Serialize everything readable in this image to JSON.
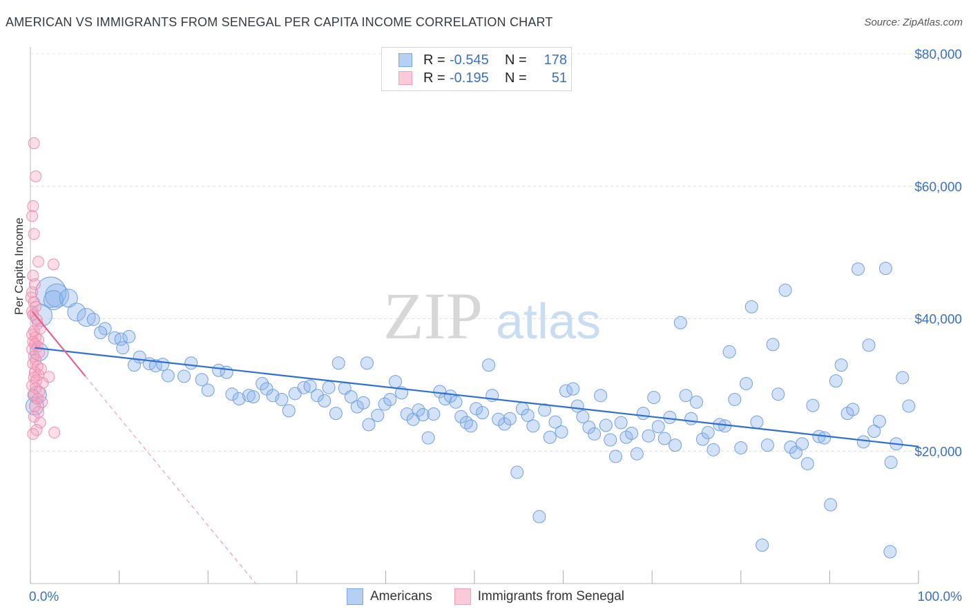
{
  "title": "AMERICAN VS IMMIGRANTS FROM SENEGAL PER CAPITA INCOME CORRELATION CHART",
  "source": "Source: ZipAtlas.com",
  "watermark": {
    "zip": "ZIP",
    "atlas": "atlas"
  },
  "legend": {
    "rows": [
      {
        "r_label": "R =",
        "r_value": "-0.545",
        "n_label": "N =",
        "n_value": "178",
        "color": "#7aaae8"
      },
      {
        "r_label": "R =",
        "r_value": "-0.195",
        "n_label": "N =",
        "n_value": "51",
        "color": "#f4a0b8"
      }
    ]
  },
  "bottom_legend": [
    "Americans",
    "Immigrants from Senegal"
  ],
  "colors": {
    "americans": "#5b8fd8",
    "senegal": "#ec7aa0",
    "trend_blue": "#2f6fd0",
    "trend_pink": "#e8608a",
    "axis_text": "#3a70c8"
  },
  "chart_data": {
    "type": "scatter",
    "title": "AMERICAN VS IMMIGRANTS FROM SENEGAL PER CAPITA INCOME CORRELATION CHART",
    "xlabel": "",
    "ylabel": "Per Capita Income",
    "xlim": [
      0,
      100
    ],
    "ylim": [
      0,
      80000
    ],
    "x_tick_labels": [
      "0.0%",
      "100.0%"
    ],
    "y_ticks": [
      20000,
      40000,
      60000,
      80000
    ],
    "y_tick_labels": [
      "$20,000",
      "$40,000",
      "$60,000",
      "$80,000"
    ],
    "grid": true,
    "legend_position": "top-center",
    "series": [
      {
        "name": "Americans",
        "color": "#7aaae8",
        "trend": {
          "x": [
            0.5,
            100
          ],
          "y": [
            35600,
            20700
          ]
        },
        "points": [
          [
            2.3,
            44000
          ],
          [
            3,
            43500
          ],
          [
            2.6,
            42800
          ],
          [
            1.2,
            40500
          ],
          [
            1,
            35000
          ],
          [
            0.8,
            28500
          ],
          [
            0.5,
            26800
          ],
          [
            4.3,
            43100
          ],
          [
            5.2,
            41000
          ],
          [
            6.3,
            40200
          ],
          [
            7.1,
            39900
          ],
          [
            8.4,
            38500
          ],
          [
            7.9,
            37900
          ],
          [
            9.5,
            37100
          ],
          [
            10.2,
            36900
          ],
          [
            11.1,
            37300
          ],
          [
            10.4,
            35600
          ],
          [
            12.3,
            34200
          ],
          [
            11.7,
            33000
          ],
          [
            13.4,
            33200
          ],
          [
            14.1,
            32900
          ],
          [
            14.9,
            33100
          ],
          [
            15.5,
            31400
          ],
          [
            17.3,
            31300
          ],
          [
            18.1,
            33300
          ],
          [
            19.3,
            30800
          ],
          [
            20,
            29200
          ],
          [
            21.2,
            32200
          ],
          [
            22.1,
            31900
          ],
          [
            22.7,
            28600
          ],
          [
            23.5,
            27900
          ],
          [
            24.6,
            28400
          ],
          [
            25.1,
            28200
          ],
          [
            26.1,
            30200
          ],
          [
            26.6,
            29400
          ],
          [
            27.3,
            28400
          ],
          [
            28.3,
            27800
          ],
          [
            29.1,
            26100
          ],
          [
            29.8,
            28700
          ],
          [
            30.8,
            29600
          ],
          [
            31.5,
            29800
          ],
          [
            32.3,
            28400
          ],
          [
            33.1,
            27600
          ],
          [
            33.6,
            29600
          ],
          [
            34.4,
            25700
          ],
          [
            34.7,
            33300
          ],
          [
            35.4,
            29500
          ],
          [
            36.1,
            28200
          ],
          [
            36.8,
            26700
          ],
          [
            37.5,
            27300
          ],
          [
            38.1,
            24000
          ],
          [
            37.9,
            33300
          ],
          [
            39.1,
            25400
          ],
          [
            39.9,
            27100
          ],
          [
            40.5,
            27800
          ],
          [
            41.1,
            30500
          ],
          [
            41.8,
            28800
          ],
          [
            42.4,
            25600
          ],
          [
            43.1,
            24800
          ],
          [
            43.7,
            26200
          ],
          [
            44.2,
            25500
          ],
          [
            44.8,
            22000
          ],
          [
            45.4,
            25600
          ],
          [
            46.1,
            29000
          ],
          [
            46.7,
            27900
          ],
          [
            47.3,
            28300
          ],
          [
            47.9,
            27400
          ],
          [
            48.5,
            25200
          ],
          [
            49.1,
            24300
          ],
          [
            49.6,
            23800
          ],
          [
            50.2,
            26400
          ],
          [
            50.9,
            25800
          ],
          [
            51.6,
            33000
          ],
          [
            52,
            28400
          ],
          [
            52.7,
            24800
          ],
          [
            53.4,
            24100
          ],
          [
            54,
            24900
          ],
          [
            54.8,
            16800
          ],
          [
            55.4,
            26400
          ],
          [
            56,
            25400
          ],
          [
            56.6,
            23800
          ],
          [
            57.3,
            10100
          ],
          [
            57.9,
            26200
          ],
          [
            58.5,
            22100
          ],
          [
            59.1,
            24400
          ],
          [
            59.8,
            22900
          ],
          [
            60.3,
            29100
          ],
          [
            61.1,
            29400
          ],
          [
            61.6,
            26800
          ],
          [
            62.2,
            25200
          ],
          [
            62.9,
            23600
          ],
          [
            63.5,
            22600
          ],
          [
            64.2,
            28400
          ],
          [
            64.8,
            23900
          ],
          [
            65.3,
            21700
          ],
          [
            65.9,
            19200
          ],
          [
            66.5,
            24300
          ],
          [
            67.1,
            22100
          ],
          [
            67.7,
            22700
          ],
          [
            68.3,
            19600
          ],
          [
            69,
            25700
          ],
          [
            69.6,
            22300
          ],
          [
            70.2,
            28100
          ],
          [
            70.7,
            23700
          ],
          [
            71.4,
            21900
          ],
          [
            72,
            25100
          ],
          [
            72.6,
            20900
          ],
          [
            73.2,
            39400
          ],
          [
            73.8,
            28400
          ],
          [
            74.4,
            24900
          ],
          [
            75,
            27400
          ],
          [
            75.7,
            21800
          ],
          [
            76.3,
            22800
          ],
          [
            76.9,
            20200
          ],
          [
            77.6,
            24000
          ],
          [
            78.2,
            23800
          ],
          [
            78.7,
            35000
          ],
          [
            79.3,
            27800
          ],
          [
            80,
            20500
          ],
          [
            80.6,
            30200
          ],
          [
            81.2,
            41800
          ],
          [
            81.8,
            24400
          ],
          [
            82.4,
            5800
          ],
          [
            83,
            20900
          ],
          [
            83.6,
            36100
          ],
          [
            84.2,
            28600
          ],
          [
            85,
            44300
          ],
          [
            85.6,
            20600
          ],
          [
            86.2,
            19800
          ],
          [
            86.9,
            21100
          ],
          [
            87.5,
            18100
          ],
          [
            88.1,
            26900
          ],
          [
            88.8,
            22200
          ],
          [
            89.4,
            22000
          ],
          [
            90.1,
            11900
          ],
          [
            90.7,
            30600
          ],
          [
            91.3,
            33000
          ],
          [
            92,
            25700
          ],
          [
            92.6,
            26300
          ],
          [
            93.2,
            47500
          ],
          [
            93.8,
            21400
          ],
          [
            94.4,
            36000
          ],
          [
            95,
            23000
          ],
          [
            95.6,
            24500
          ],
          [
            96.3,
            47600
          ],
          [
            96.9,
            18300
          ],
          [
            96.8,
            4800
          ],
          [
            97.5,
            21100
          ],
          [
            98.2,
            31100
          ],
          [
            98.9,
            26800
          ]
        ]
      },
      {
        "name": "Immigrants from Senegal",
        "color": "#f4a0b8",
        "trend": {
          "x": [
            0.2,
            6.2
          ],
          "y": [
            41100,
            31300
          ]
        },
        "points": [
          [
            0.4,
            66500
          ],
          [
            0.6,
            61500
          ],
          [
            0.3,
            57000
          ],
          [
            0.2,
            55500
          ],
          [
            0.4,
            52800
          ],
          [
            0.9,
            48600
          ],
          [
            0.3,
            46500
          ],
          [
            0.5,
            45200
          ],
          [
            0.2,
            44000
          ],
          [
            0.1,
            43200
          ],
          [
            0.4,
            42500
          ],
          [
            0.6,
            41800
          ],
          [
            0.2,
            41100
          ],
          [
            0.3,
            40600
          ],
          [
            0.7,
            39900
          ],
          [
            0.8,
            39200
          ],
          [
            1.1,
            38500
          ],
          [
            0.4,
            38100
          ],
          [
            0.2,
            37600
          ],
          [
            0.6,
            37200
          ],
          [
            0.9,
            36800
          ],
          [
            0.3,
            36500
          ],
          [
            0.5,
            36200
          ],
          [
            0.8,
            35800
          ],
          [
            0.2,
            35400
          ],
          [
            1.0,
            34900
          ],
          [
            0.4,
            34300
          ],
          [
            0.6,
            33800
          ],
          [
            0.3,
            33200
          ],
          [
            0.8,
            32800
          ],
          [
            1.2,
            32400
          ],
          [
            0.5,
            31900
          ],
          [
            0.9,
            31500
          ],
          [
            0.4,
            31100
          ],
          [
            0.7,
            30700
          ],
          [
            1.4,
            30300
          ],
          [
            0.2,
            29900
          ],
          [
            0.6,
            29500
          ],
          [
            1.0,
            29000
          ],
          [
            0.3,
            28500
          ],
          [
            0.8,
            27900
          ],
          [
            1.3,
            27400
          ],
          [
            0.5,
            26800
          ],
          [
            0.9,
            25900
          ],
          [
            0.4,
            25200
          ],
          [
            1.1,
            24300
          ],
          [
            0.7,
            23200
          ],
          [
            0.3,
            22600
          ],
          [
            2.6,
            48200
          ],
          [
            2.1,
            31200
          ],
          [
            2.7,
            22800
          ]
        ]
      }
    ]
  }
}
